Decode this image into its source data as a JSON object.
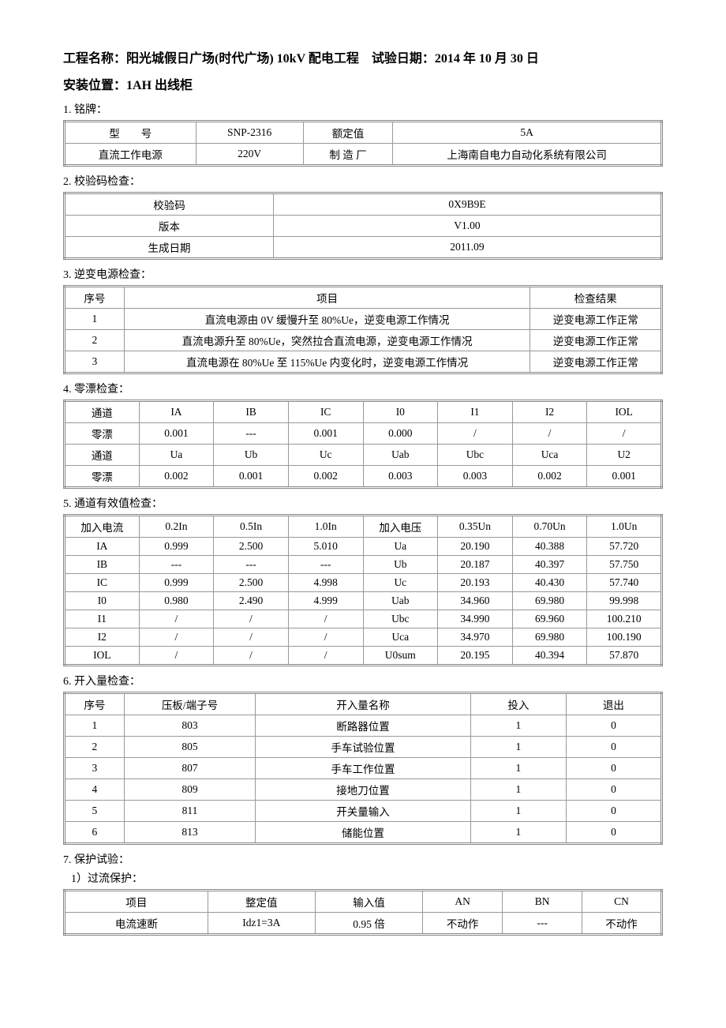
{
  "header": {
    "project_label": "工程名称：",
    "project_value": "阳光城假日广场(时代广场) 10kV 配电工程",
    "date_label": "试验日期：",
    "date_value": "2014 年 10 月 30 日",
    "install_label": "安装位置：",
    "install_value": "1AH 出线柜"
  },
  "sec1": {
    "title": "1. 铭牌：",
    "r1c1": "型　　号",
    "r1c2": "SNP-2316",
    "r1c3": "额定值",
    "r1c4": "5A",
    "r2c1": "直流工作电源",
    "r2c2": "220V",
    "r2c3": "制 造 厂",
    "r2c4": "上海南自电力自动化系统有限公司"
  },
  "sec2": {
    "title": "2. 校验码检查：",
    "r1c1": "校验码",
    "r1c2": "0X9B9E",
    "r2c1": "版本",
    "r2c2": "V1.00",
    "r3c1": "生成日期",
    "r3c2": "2011.09"
  },
  "sec3": {
    "title": "3. 逆变电源检查：",
    "h1": "序号",
    "h2": "项目",
    "h3": "检查结果",
    "rows": [
      {
        "n": "1",
        "item": "直流电源由 0V 缓慢升至 80%Ue，逆变电源工作情况",
        "res": "逆变电源工作正常"
      },
      {
        "n": "2",
        "item": "直流电源升至 80%Ue，突然拉合直流电源，逆变电源工作情况",
        "res": "逆变电源工作正常"
      },
      {
        "n": "3",
        "item": "直流电源在 80%Ue 至 115%Ue 内变化时，逆变电源工作情况",
        "res": "逆变电源工作正常"
      }
    ]
  },
  "sec4": {
    "title": "4. 零漂检查：",
    "r1": [
      "通道",
      "IA",
      "IB",
      "IC",
      "I0",
      "I1",
      "I2",
      "IOL"
    ],
    "r2": [
      "零漂",
      "0.001",
      "---",
      "0.001",
      "0.000",
      "/",
      "/",
      "/"
    ],
    "r3": [
      "通道",
      "Ua",
      "Ub",
      "Uc",
      "Uab",
      "Ubc",
      "Uca",
      "U2"
    ],
    "r4": [
      "零漂",
      "0.002",
      "0.001",
      "0.002",
      "0.003",
      "0.003",
      "0.002",
      "0.001"
    ]
  },
  "sec5": {
    "title": "5. 通道有效值检查：",
    "head": [
      "加入电流",
      "0.2In",
      "0.5In",
      "1.0In",
      "加入电压",
      "0.35Un",
      "0.70Un",
      "1.0Un"
    ],
    "rows": [
      [
        "IA",
        "0.999",
        "2.500",
        "5.010",
        "Ua",
        "20.190",
        "40.388",
        "57.720"
      ],
      [
        "IB",
        "---",
        "---",
        "---",
        "Ub",
        "20.187",
        "40.397",
        "57.750"
      ],
      [
        "IC",
        "0.999",
        "2.500",
        "4.998",
        "Uc",
        "20.193",
        "40.430",
        "57.740"
      ],
      [
        "I0",
        "0.980",
        "2.490",
        "4.999",
        "Uab",
        "34.960",
        "69.980",
        "99.998"
      ],
      [
        "I1",
        "/",
        "/",
        "/",
        "Ubc",
        "34.990",
        "69.960",
        "100.210"
      ],
      [
        "I2",
        "/",
        "/",
        "/",
        "Uca",
        "34.970",
        "69.980",
        "100.190"
      ],
      [
        "IOL",
        "/",
        "/",
        "/",
        "U0sum",
        "20.195",
        "40.394",
        "57.870"
      ]
    ]
  },
  "sec6": {
    "title": "6. 开入量检查：",
    "head": [
      "序号",
      "压板/端子号",
      "开入量名称",
      "投入",
      "退出"
    ],
    "rows": [
      [
        "1",
        "803",
        "断路器位置",
        "1",
        "0"
      ],
      [
        "2",
        "805",
        "手车试验位置",
        "1",
        "0"
      ],
      [
        "3",
        "807",
        "手车工作位置",
        "1",
        "0"
      ],
      [
        "4",
        "809",
        "接地刀位置",
        "1",
        "0"
      ],
      [
        "5",
        "811",
        "开关量输入",
        "1",
        "0"
      ],
      [
        "6",
        "813",
        "储能位置",
        "1",
        "0"
      ]
    ]
  },
  "sec7": {
    "title": "7. 保护试验：",
    "sub1_title": "1）过流保护：",
    "head": [
      "项目",
      "整定值",
      "输入值",
      "AN",
      "BN",
      "CN"
    ],
    "row1": [
      "电流速断",
      "Idz1=3A",
      "0.95 倍",
      "不动作",
      "---",
      "不动作"
    ]
  }
}
